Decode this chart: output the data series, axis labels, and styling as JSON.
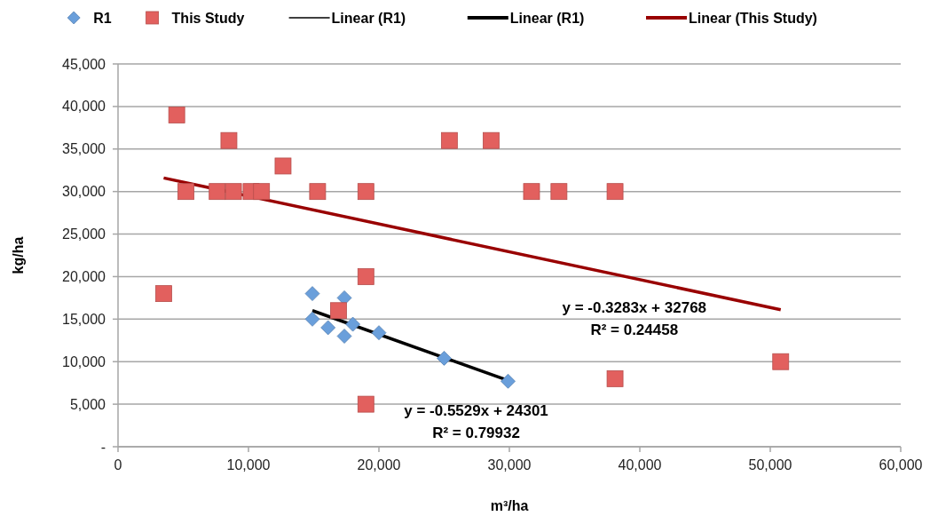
{
  "chart_data": {
    "type": "scatter",
    "xlabel": "m³/ha",
    "ylabel": "kg/ha",
    "xlim": [
      0,
      60000
    ],
    "xticks": [
      {
        "value": 0,
        "label": "0"
      },
      {
        "value": 10000,
        "label": "10,000"
      },
      {
        "value": 20000,
        "label": "20,000"
      },
      {
        "value": 30000,
        "label": "30,000"
      },
      {
        "value": 40000,
        "label": "40,000"
      },
      {
        "value": 50000,
        "label": "50,000"
      },
      {
        "value": 60000,
        "label": "60,000"
      }
    ],
    "ylim": [
      0,
      45000
    ],
    "yticks": [
      {
        "value": 0,
        "label": "-"
      },
      {
        "value": 5000,
        "label": "5,000"
      },
      {
        "value": 10000,
        "label": "10,000"
      },
      {
        "value": 15000,
        "label": "15,000"
      },
      {
        "value": 20000,
        "label": "20,000"
      },
      {
        "value": 25000,
        "label": "25,000"
      },
      {
        "value": 30000,
        "label": "30,000"
      },
      {
        "value": 35000,
        "label": "35,000"
      },
      {
        "value": 40000,
        "label": "40,000"
      },
      {
        "value": 45000,
        "label": "45,000"
      }
    ],
    "grid": "y",
    "legend": "top",
    "series": [
      {
        "name": "R1",
        "marker": "diamond",
        "color": "#6a9fdb",
        "x": [
          14900,
          17350,
          14900,
          16100,
          18000,
          17350,
          20000,
          25000,
          29900
        ],
        "values": [
          18000,
          17500,
          15000,
          14000,
          14400,
          13000,
          13400,
          10400,
          7700
        ]
      },
      {
        "name": "This Study",
        "marker": "square",
        "color": "#e2605e",
        "x": [
          3500,
          4500,
          5200,
          7600,
          8850,
          10200,
          11000,
          8500,
          12650,
          15300,
          19000,
          19000,
          16900,
          19000,
          25400,
          28600,
          31700,
          33800,
          38100,
          38100,
          50800
        ],
        "values": [
          18000,
          39000,
          30000,
          30000,
          30000,
          30000,
          30000,
          36000,
          33000,
          30000,
          30000,
          20000,
          16000,
          5000,
          36000,
          36000,
          30000,
          30000,
          30000,
          8000,
          10000
        ]
      },
      {
        "name": "Linear (R1)",
        "type": "line",
        "marker": "none",
        "color": "#000000"
      },
      {
        "name": "Linear (R1)",
        "type": "line",
        "marker": "none",
        "color": "#000000",
        "x": [
          14900,
          29900
        ],
        "values": [
          16000,
          7800
        ]
      },
      {
        "name": "Linear (This Study)",
        "type": "line",
        "marker": "none",
        "color": "#990000",
        "x": [
          3500,
          50800
        ],
        "values": [
          31600,
          16100
        ]
      }
    ],
    "annotations": [
      "y = -0.5529x + 24301",
      "R² = 0.79932",
      "y = -0.3283x + 32768",
      "R² = 0.24458"
    ]
  }
}
